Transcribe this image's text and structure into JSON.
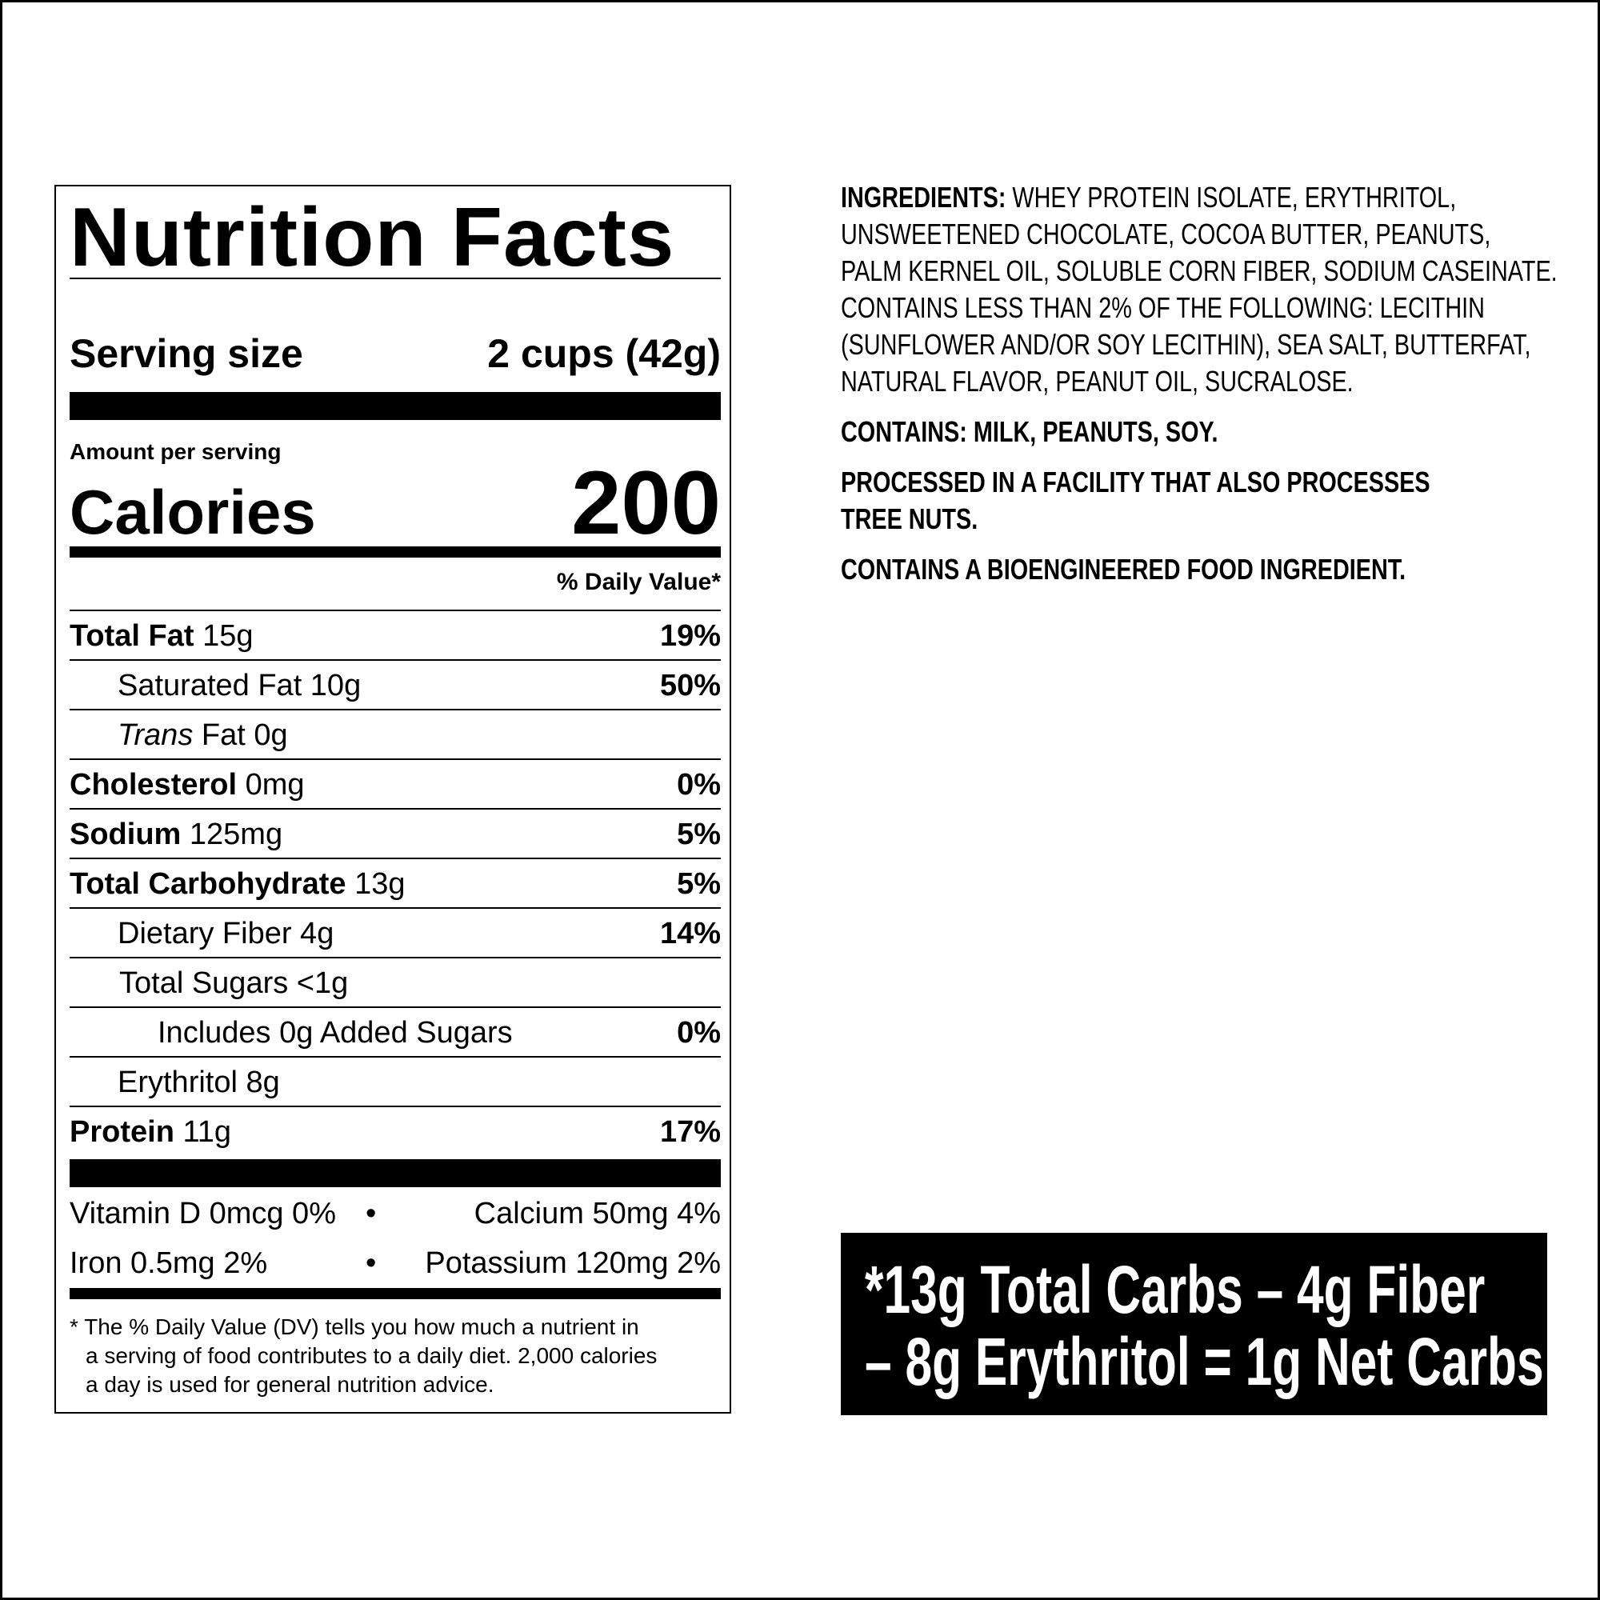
{
  "label": {
    "title": "Nutrition Facts",
    "serving_label": "Serving size",
    "serving_value": "2 cups (42g)",
    "amount_per_serving": "Amount per serving",
    "calories_label": "Calories",
    "calories_value": "200",
    "dv_header": "% Daily Value*",
    "rows": [
      {
        "bold": "Total Fat",
        "text": " 15g",
        "pct": "19%"
      },
      {
        "bold": "",
        "text": "Saturated Fat 10g",
        "pct": "50%"
      },
      {
        "italic": "Trans",
        "text": " Fat 0g",
        "pct": ""
      },
      {
        "bold": "Cholesterol",
        "text": " 0mg",
        "pct": "0%"
      },
      {
        "bold": "Sodium",
        "text": " 125mg",
        "pct": "5%"
      },
      {
        "bold": "Total Carbohydrate",
        "text": " 13g",
        "pct": "5%"
      },
      {
        "bold": "",
        "text": "Dietary Fiber 4g",
        "pct": "14%"
      },
      {
        "bold": "",
        "text": "Total Sugars <1g",
        "pct": ""
      },
      {
        "bold": "",
        "text": "Includes 0g Added Sugars",
        "pct": "0%"
      },
      {
        "bold": "",
        "text": "Erythritol 8g",
        "pct": ""
      },
      {
        "bold": "Protein",
        "text": " 11g",
        "pct": "17%"
      }
    ],
    "vitamins": [
      {
        "a": "Vitamin D 0mcg 0%",
        "b": "Calcium 50mg 4%"
      },
      {
        "a": "Iron 0.5mg 2%",
        "b": "Potassium 120mg 2%"
      }
    ],
    "bullet": "•",
    "footnote": [
      "* The % Daily Value (DV) tells you how much a nutrient in",
      "a serving of food contributes to a daily diet. 2,000 calories",
      "a day is used for general nutrition advice."
    ]
  },
  "ingredients": {
    "heading": "INGREDIENTS:",
    "lines": [
      " WHEY PROTEIN ISOLATE, ERYTHRITOL,",
      "UNSWEETENED CHOCOLATE, COCOA BUTTER, PEANUTS,",
      "PALM KERNEL OIL, SOLUBLE CORN FIBER, SODIUM CASEINATE.",
      "CONTAINS LESS THAN 2% OF THE FOLLOWING: LECITHIN",
      "(SUNFLOWER AND/OR SOY LECITHIN), SEA SALT, BUTTERFAT,",
      "NATURAL FLAVOR, PEANUT OIL, SUCRALOSE."
    ],
    "contains": "CONTAINS: MILK, PEANUTS, SOY.",
    "facility": [
      "PROCESSED IN A FACILITY THAT ALSO PROCESSES",
      "TREE NUTS."
    ],
    "bioengineered": "CONTAINS A BIOENGINEERED FOOD INGREDIENT."
  },
  "net_carbs": {
    "lines": [
      "*13g Total Carbs – 4g Fiber",
      "– 8g Erythritol = 1g Net Carbs"
    ]
  }
}
